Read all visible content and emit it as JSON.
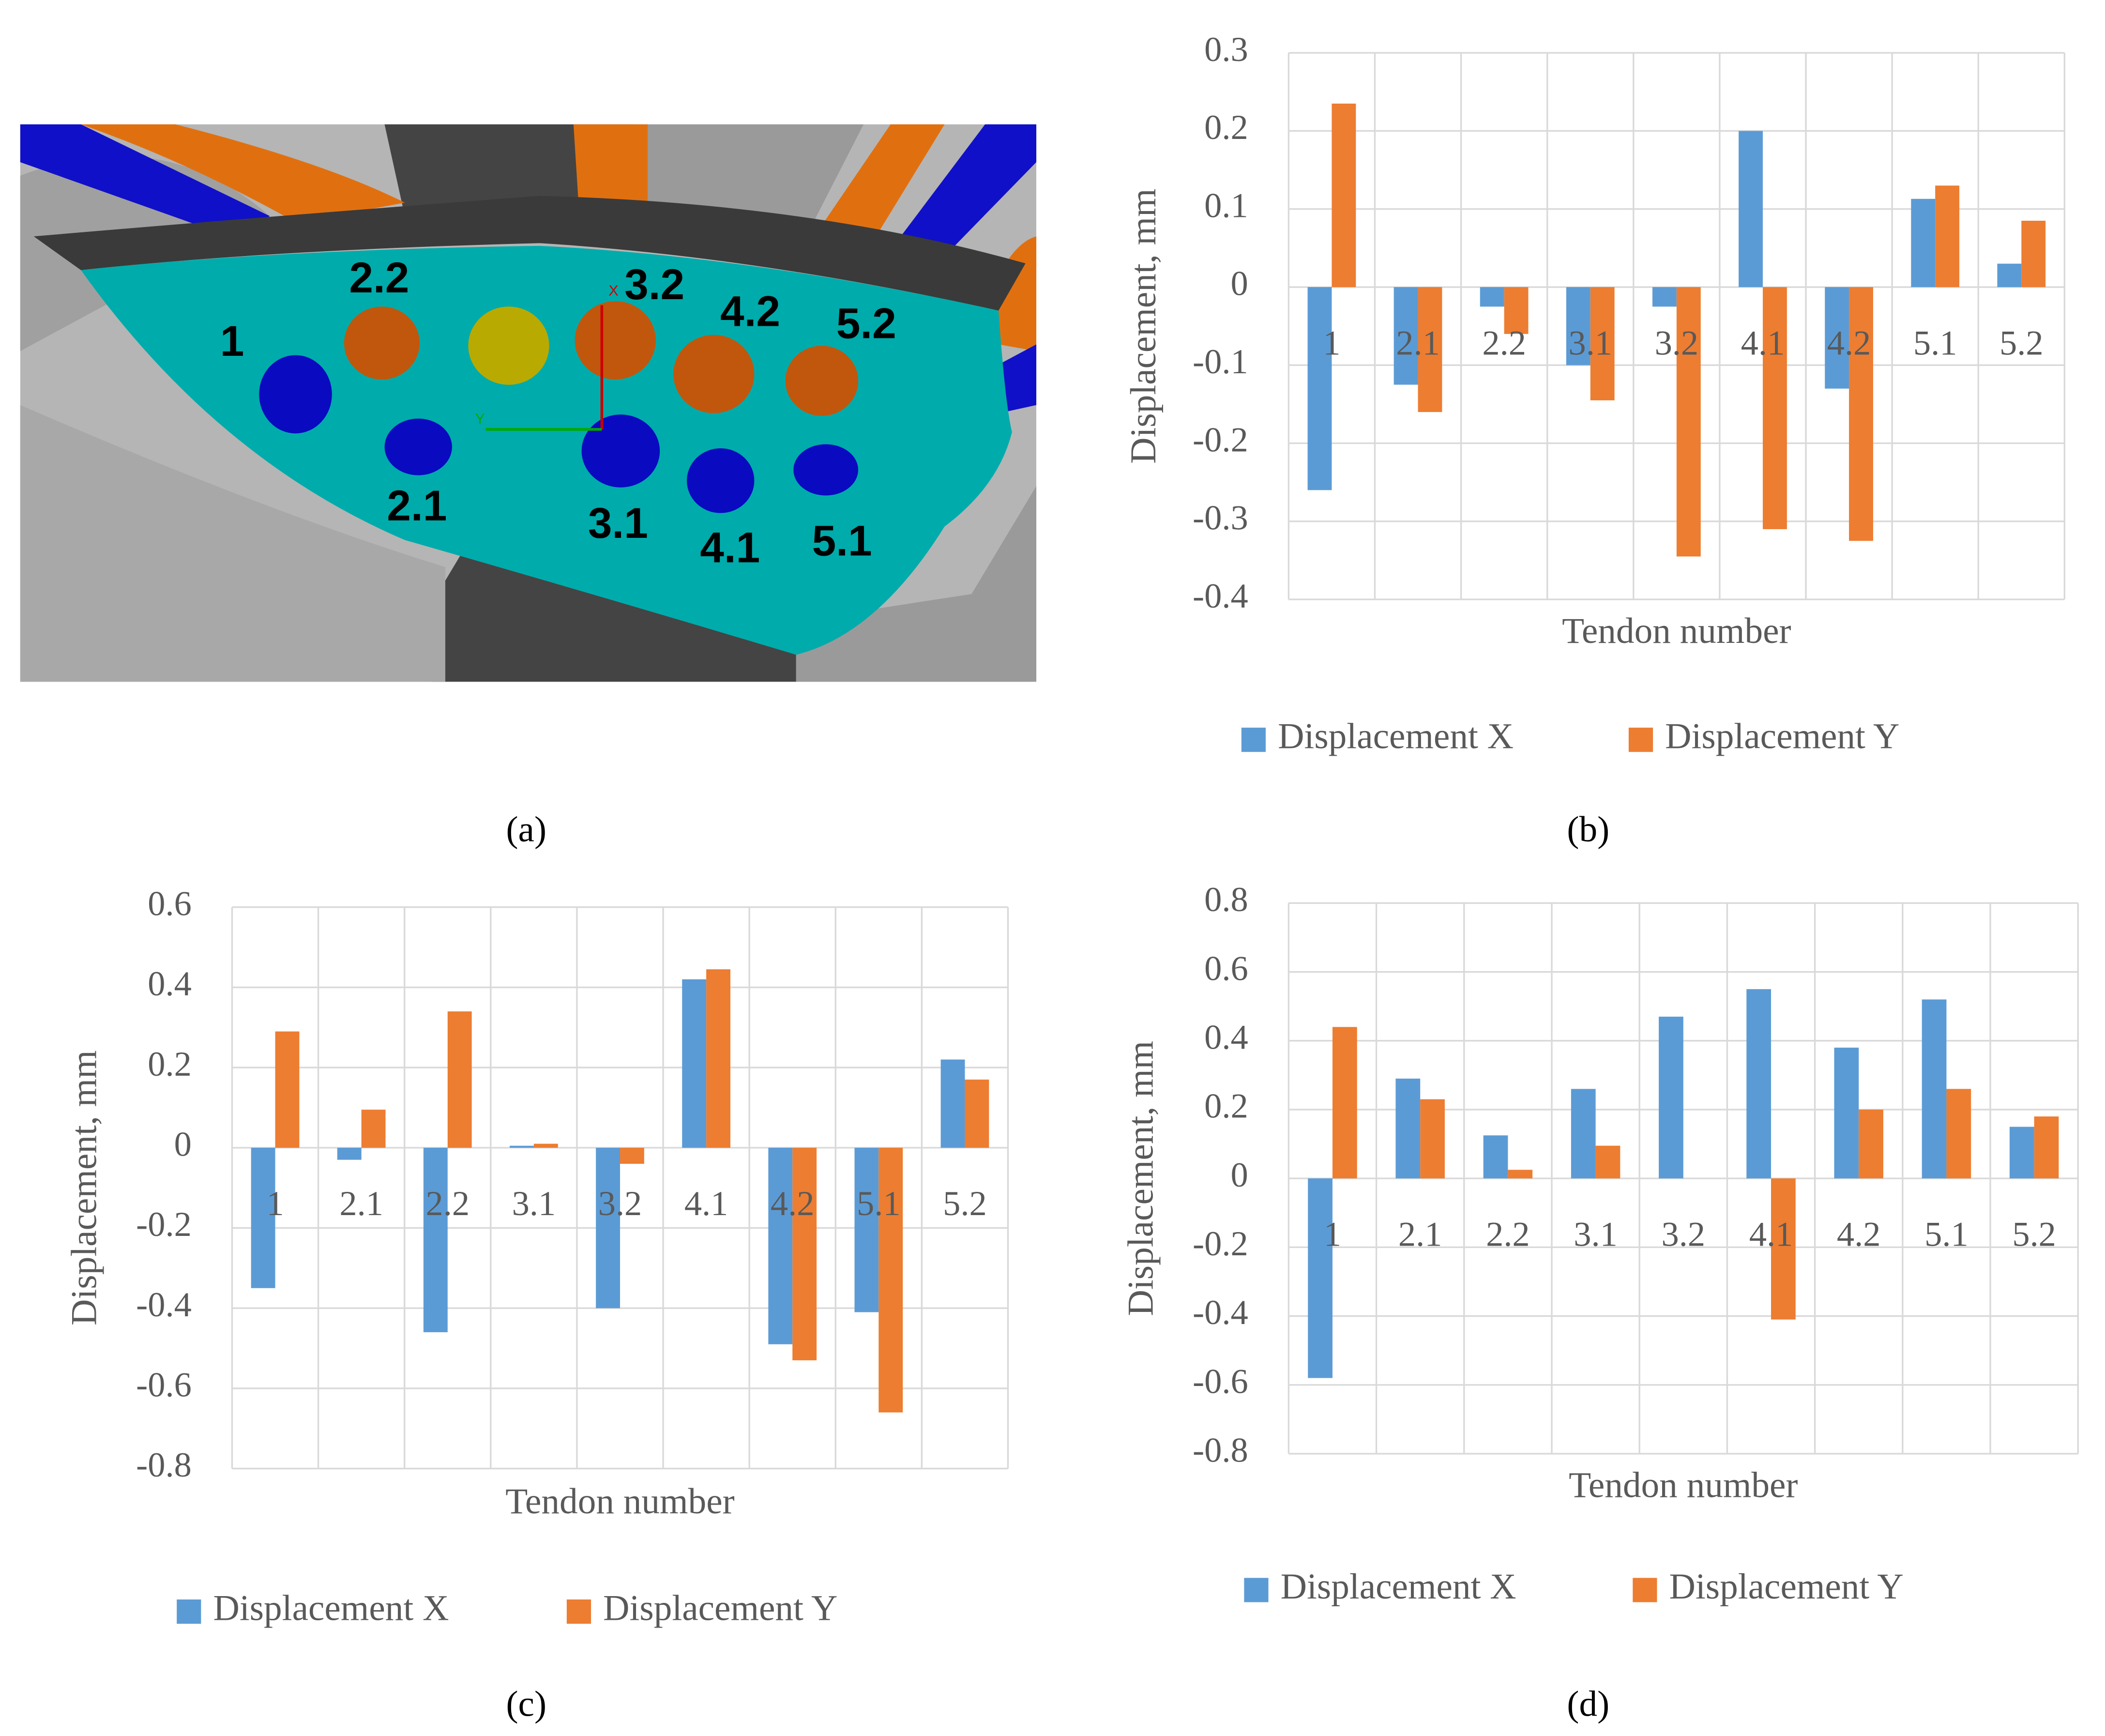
{
  "panel_a": {
    "caption": "(a)",
    "tendon_labels": [
      "1",
      "2.2",
      "3.2",
      "4.2",
      "5.2",
      "2.1",
      "3.1",
      "4.1",
      "5.1"
    ],
    "axis_labels": [
      "X",
      "Y"
    ]
  },
  "chart_data": [
    {
      "type": "bar",
      "caption": "(b)",
      "ylabel": "Displacement, mm",
      "xlabel": "Tendon number",
      "categories": [
        "1",
        "2.1",
        "2.2",
        "3.1",
        "3.2",
        "4.1",
        "4.2",
        "5.1",
        "5.2"
      ],
      "series": [
        {
          "name": "Displacement X",
          "color": "#5b9bd5",
          "values": [
            -0.26,
            -0.125,
            -0.025,
            -0.1,
            -0.025,
            0.2,
            -0.13,
            0.113,
            0.03
          ]
        },
        {
          "name": "Displacement Y",
          "color": "#ed7d31",
          "values": [
            0.235,
            -0.16,
            -0.06,
            -0.145,
            -0.345,
            -0.31,
            -0.325,
            0.13,
            0.085
          ]
        }
      ],
      "ylim": [
        -0.4,
        0.3
      ],
      "yticks": [
        -0.4,
        -0.3,
        -0.2,
        -0.1,
        0,
        0.1,
        0.2,
        0.3
      ],
      "grid": true,
      "legend": "bottom"
    },
    {
      "type": "bar",
      "caption": "(c)",
      "ylabel": "Displacement, mm",
      "xlabel": "Tendon number",
      "categories": [
        "1",
        "2.1",
        "2.2",
        "3.1",
        "3.2",
        "4.1",
        "4.2",
        "5.1",
        "5.2"
      ],
      "series": [
        {
          "name": "Displacement X",
          "color": "#5b9bd5",
          "values": [
            -0.35,
            -0.03,
            -0.46,
            0.005,
            -0.4,
            0.42,
            -0.49,
            -0.41,
            0.22
          ]
        },
        {
          "name": "Displacement Y",
          "color": "#ed7d31",
          "values": [
            0.29,
            0.095,
            0.34,
            0.01,
            -0.04,
            0.445,
            -0.53,
            -0.66,
            0.17
          ]
        }
      ],
      "ylim": [
        -0.8,
        0.6
      ],
      "yticks": [
        -0.8,
        -0.6,
        -0.4,
        -0.2,
        0,
        0.2,
        0.4,
        0.6
      ],
      "grid": true,
      "legend": "bottom"
    },
    {
      "type": "bar",
      "caption": "(d)",
      "ylabel": "Displacement, mm",
      "xlabel": "Tendon number",
      "categories": [
        "1",
        "2.1",
        "2.2",
        "3.1",
        "3.2",
        "4.1",
        "4.2",
        "5.1",
        "5.2"
      ],
      "series": [
        {
          "name": "Displacement X",
          "color": "#5b9bd5",
          "values": [
            -0.58,
            0.29,
            0.125,
            0.26,
            0.47,
            0.55,
            0.38,
            0.52,
            0.15
          ]
        },
        {
          "name": "Displacement Y",
          "color": "#ed7d31",
          "values": [
            0.44,
            0.23,
            0.025,
            0.095,
            0,
            -0.41,
            0.2,
            0.26,
            0.18
          ]
        }
      ],
      "ylim": [
        -0.8,
        0.8
      ],
      "yticks": [
        -0.8,
        -0.6,
        -0.4,
        -0.2,
        0,
        0.2,
        0.4,
        0.6,
        0.8
      ],
      "grid": true,
      "legend": "bottom"
    }
  ]
}
